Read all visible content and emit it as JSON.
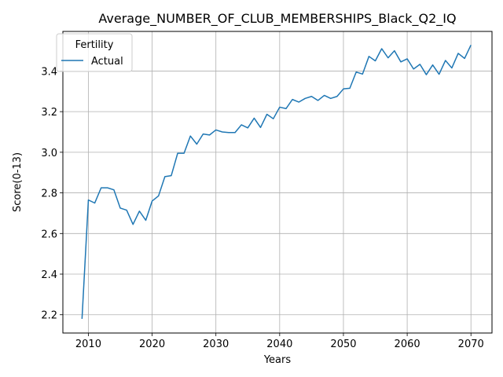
{
  "chart_data": {
    "type": "line",
    "title": "Average_NUMBER_OF_CLUB_MEMBERSHIPS_Black_Q2_IQ",
    "xlabel": "Years",
    "ylabel": "Score(0-13)",
    "xlim": [
      2006,
      2073.3
    ],
    "ylim": [
      2.11,
      3.595
    ],
    "xticks": [
      2010,
      2020,
      2030,
      2040,
      2050,
      2060,
      2070
    ],
    "yticks": [
      2.2,
      2.4,
      2.6,
      2.8,
      3.0,
      3.2,
      3.4
    ],
    "ytick_labels": [
      "2.2",
      "2.4",
      "2.6",
      "2.8",
      "3.0",
      "3.2",
      "3.4"
    ],
    "grid": true,
    "legend": {
      "title": "Fertility",
      "position": "top-left"
    },
    "series": [
      {
        "name": "Actual",
        "color": "#1f77b4",
        "x": [
          2009,
          2010,
          2011,
          2012,
          2013,
          2014,
          2015,
          2016,
          2017,
          2018,
          2019,
          2020,
          2021,
          2022,
          2023,
          2024,
          2025,
          2026,
          2027,
          2028,
          2029,
          2030,
          2031,
          2032,
          2033,
          2034,
          2035,
          2036,
          2037,
          2038,
          2039,
          2040,
          2041,
          2042,
          2043,
          2044,
          2045,
          2046,
          2047,
          2048,
          2049,
          2050,
          2051,
          2052,
          2053,
          2054,
          2055,
          2056,
          2057,
          2058,
          2059,
          2060,
          2061,
          2062,
          2063,
          2064,
          2065,
          2066,
          2067,
          2068,
          2069,
          2070
        ],
        "y": [
          2.18,
          2.765,
          2.75,
          2.825,
          2.825,
          2.815,
          2.725,
          2.715,
          2.645,
          2.71,
          2.665,
          2.76,
          2.785,
          2.88,
          2.885,
          2.995,
          2.995,
          3.08,
          3.04,
          3.09,
          3.085,
          3.11,
          3.1,
          3.097,
          3.097,
          3.135,
          3.12,
          3.168,
          3.122,
          3.187,
          3.165,
          3.222,
          3.215,
          3.26,
          3.247,
          3.265,
          3.275,
          3.255,
          3.28,
          3.265,
          3.275,
          3.312,
          3.315,
          3.395,
          3.385,
          3.472,
          3.45,
          3.51,
          3.465,
          3.5,
          3.445,
          3.46,
          3.41,
          3.433,
          3.382,
          3.43,
          3.384,
          3.452,
          3.415,
          3.487,
          3.462,
          3.528
        ]
      }
    ]
  }
}
